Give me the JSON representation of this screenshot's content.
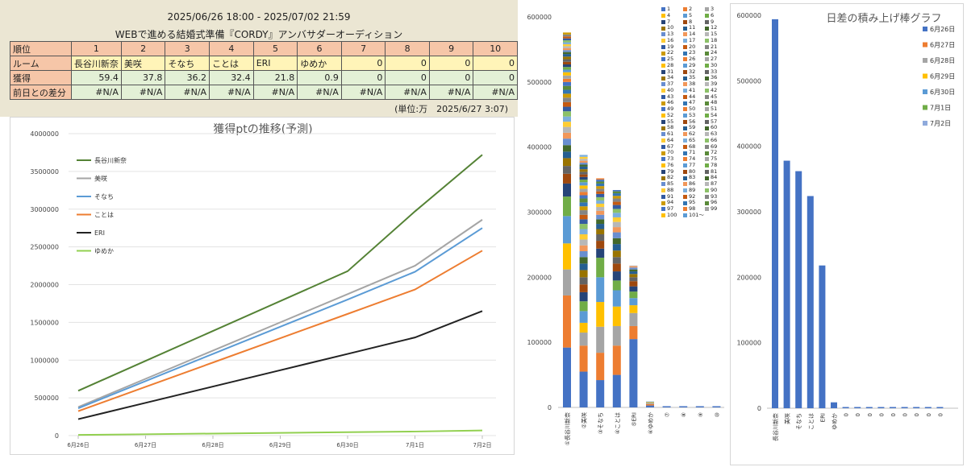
{
  "header": {
    "period": "2025/06/26 18:00 - 2025/07/02 21:59",
    "title": "WEBで進める結婚式準備『CORDY』アンバサダーオーディション",
    "unit_note": "(単位:万　2025/6/27 3:07)"
  },
  "ranking_table": {
    "row_labels": [
      "順位",
      "ルーム",
      "獲得",
      "前日との差分"
    ],
    "ranks": [
      "1",
      "2",
      "3",
      "4",
      "5",
      "6",
      "7",
      "8",
      "9",
      "10"
    ],
    "rooms": [
      "長谷川新奈",
      "美咲",
      "そなち",
      "ことは",
      "ERI",
      "ゆめか",
      "0",
      "0",
      "0",
      "0"
    ],
    "points": [
      "59.4",
      "37.8",
      "36.2",
      "32.4",
      "21.8",
      "0.9",
      "0",
      "0",
      "0",
      "0"
    ],
    "diffs": [
      "#N/A",
      "#N/A",
      "#N/A",
      "#N/A",
      "#N/A",
      "#N/A",
      "#N/A",
      "#N/A",
      "#N/A",
      "#N/A"
    ]
  },
  "chart_data": [
    {
      "type": "line",
      "title": "獲得ptの推移(予測)",
      "x": [
        "6月26日",
        "6月27日",
        "6月28日",
        "6月29日",
        "6月30日",
        "7月1日",
        "7月2日"
      ],
      "ylim": [
        0,
        4000000
      ],
      "yticks": [
        "0",
        "500000",
        "1000000",
        "1500000",
        "2000000",
        "2500000",
        "3000000",
        "3500000",
        "4000000"
      ],
      "grid": true,
      "legend_position": "top-left",
      "series": [
        {
          "name": "長谷川新奈",
          "color": "#548235",
          "values": [
            594000,
            990000,
            1386000,
            1782000,
            2178000,
            2970000,
            3720000
          ]
        },
        {
          "name": "美咲",
          "color": "#a5a5a5",
          "values": [
            378000,
            752000,
            1126000,
            1500000,
            1874000,
            2250000,
            2860000
          ]
        },
        {
          "name": "そなち",
          "color": "#5b9bd5",
          "values": [
            362000,
            722000,
            1082000,
            1442000,
            1802000,
            2170000,
            2750000
          ]
        },
        {
          "name": "ことは",
          "color": "#ed7d31",
          "values": [
            324000,
            646000,
            968000,
            1290000,
            1612000,
            1935000,
            2450000
          ]
        },
        {
          "name": "ERI",
          "color": "#222222",
          "values": [
            218000,
            434000,
            650000,
            866000,
            1082000,
            1300000,
            1650000
          ]
        },
        {
          "name": "ゆめか",
          "color": "#92d050",
          "values": [
            9000,
            18000,
            27000,
            36000,
            45000,
            54000,
            68000
          ]
        }
      ]
    },
    {
      "type": "bar",
      "stacked": true,
      "categories": [
        "①長谷川新奈",
        "②美咲",
        "③そなち",
        "④ことは",
        "⑤ERI",
        "⑥ゆめか",
        "⑦",
        "⑧",
        "⑨",
        "⑩"
      ],
      "totals": [
        594000,
        378000,
        362000,
        324000,
        218000,
        9000,
        0,
        0,
        0,
        0
      ],
      "ylim": [
        0,
        600000
      ],
      "yticks": [
        "0",
        "100000",
        "200000",
        "300000",
        "400000",
        "500000",
        "600000"
      ],
      "legend_position": "top-right",
      "legend_entries": [
        "1",
        "2",
        "3",
        "4",
        "5",
        "6",
        "7",
        "8",
        "9",
        "10",
        "11",
        "12",
        "13",
        "14",
        "15",
        "16",
        "17",
        "18",
        "19",
        "20",
        "21",
        "22",
        "23",
        "24",
        "25",
        "26",
        "27",
        "28",
        "29",
        "30",
        "31",
        "32",
        "33",
        "34",
        "35",
        "36",
        "37",
        "38",
        "39",
        "40",
        "41",
        "42",
        "43",
        "44",
        "45",
        "46",
        "47",
        "48",
        "49",
        "50",
        "51",
        "52",
        "53",
        "54",
        "55",
        "56",
        "57",
        "58",
        "59",
        "60",
        "61",
        "62",
        "63",
        "64",
        "65",
        "66",
        "67",
        "68",
        "69",
        "70",
        "71",
        "72",
        "73",
        "74",
        "75",
        "76",
        "77",
        "78",
        "79",
        "80",
        "81",
        "82",
        "83",
        "84",
        "85",
        "86",
        "87",
        "88",
        "89",
        "90",
        "91",
        "92",
        "93",
        "94",
        "95",
        "96",
        "97",
        "98",
        "99",
        "100",
        "101～"
      ],
      "palette": [
        "#4472c4",
        "#ed7d31",
        "#a5a5a5",
        "#ffc000",
        "#5b9bd5",
        "#70ad47",
        "#264478",
        "#9e480e",
        "#636363",
        "#997300",
        "#255e91",
        "#43682b",
        "#698ed0",
        "#f1975a",
        "#b7b7b7",
        "#ffcd33",
        "#7cafdd",
        "#8cc168",
        "#335aa1",
        "#c55a11",
        "#848484",
        "#cc9a00",
        "#3275b3",
        "#5a8a39"
      ],
      "segments": {
        "長谷川新奈": [
          92000,
          80000,
          40000,
          40000,
          42000,
          30000,
          20000,
          15000,
          12000,
          12000,
          10000,
          10000,
          10000,
          9000,
          9000,
          8000,
          8000,
          8000,
          7000,
          7000,
          7000,
          6000,
          6000,
          6000,
          6000,
          5000,
          5000,
          5000,
          4000,
          4000,
          4000,
          4000,
          4000,
          4000,
          4000,
          3000,
          3000,
          3000,
          3000,
          3000,
          3000,
          3000,
          3000,
          3000,
          3000,
          3000
        ],
        "美咲": [
          55000,
          40000,
          20000,
          15000,
          18000,
          15000,
          14000,
          12000,
          11000,
          11000,
          10000,
          10000,
          9000,
          9000,
          9000,
          8000,
          8000,
          8000,
          7000,
          7000,
          7000,
          6000,
          6000,
          6000,
          5000,
          5000,
          5000,
          5000,
          5000,
          4000,
          4000,
          4000,
          4000,
          4000,
          4000,
          3000,
          3000,
          3000,
          3000,
          3000,
          3000
        ],
        "そなち": [
          42000,
          42000,
          40000,
          38000,
          38000,
          30000,
          14000,
          12000,
          10000,
          8000,
          8000,
          7000,
          7000,
          6000,
          6000,
          5000,
          5000,
          5000,
          5000,
          4000,
          4000,
          4000,
          4000,
          3000,
          3000,
          2000
        ],
        "ことは": [
          50000,
          45000,
          30000,
          30000,
          25000,
          15000,
          14000,
          12000,
          10000,
          10000,
          10000,
          9000,
          9000,
          8000,
          8000,
          7000,
          7000,
          6000,
          6000,
          5000,
          5000,
          4000,
          4000,
          3000,
          2000
        ],
        "ERI": [
          105000,
          20000,
          20000,
          12000,
          11000,
          10000,
          8000,
          8000,
          6000,
          5000,
          4000,
          3000,
          3000,
          2000,
          1000
        ],
        "ゆめか": [
          3000,
          2000,
          2000,
          1000,
          1000
        ]
      }
    },
    {
      "type": "bar",
      "title": "日差の積み上げ棒グラフ",
      "categories": [
        "長谷川新奈",
        "美咲",
        "そなち",
        "ことは",
        "ERI",
        "ゆめか",
        "0",
        "0",
        "0",
        "0",
        "0",
        "0",
        "0",
        "0",
        "0"
      ],
      "ylim": [
        0,
        600000
      ],
      "yticks": [
        "0",
        "100000",
        "200000",
        "300000",
        "400000",
        "500000",
        "600000"
      ],
      "legend_position": "right",
      "series": [
        {
          "name": "6月26日",
          "color": "#4472c4",
          "values": [
            594000,
            378000,
            362000,
            324000,
            218000,
            9000,
            0,
            0,
            0,
            0,
            0,
            0,
            0,
            0,
            0
          ]
        },
        {
          "name": "6月27日",
          "color": "#ed7d31",
          "values": [
            0,
            0,
            0,
            0,
            0,
            0,
            0,
            0,
            0,
            0,
            0,
            0,
            0,
            0,
            0
          ]
        },
        {
          "name": "6月28日",
          "color": "#a5a5a5",
          "values": [
            0,
            0,
            0,
            0,
            0,
            0,
            0,
            0,
            0,
            0,
            0,
            0,
            0,
            0,
            0
          ]
        },
        {
          "name": "6月29日",
          "color": "#ffc000",
          "values": [
            0,
            0,
            0,
            0,
            0,
            0,
            0,
            0,
            0,
            0,
            0,
            0,
            0,
            0,
            0
          ]
        },
        {
          "name": "6月30日",
          "color": "#5b9bd5",
          "values": [
            0,
            0,
            0,
            0,
            0,
            0,
            0,
            0,
            0,
            0,
            0,
            0,
            0,
            0,
            0
          ]
        },
        {
          "name": "7月1日",
          "color": "#70ad47",
          "values": [
            0,
            0,
            0,
            0,
            0,
            0,
            0,
            0,
            0,
            0,
            0,
            0,
            0,
            0,
            0
          ]
        },
        {
          "name": "7月2日",
          "color": "#8faadc",
          "values": [
            0,
            0,
            0,
            0,
            0,
            0,
            0,
            0,
            0,
            0,
            0,
            0,
            0,
            0,
            0
          ]
        }
      ]
    }
  ]
}
